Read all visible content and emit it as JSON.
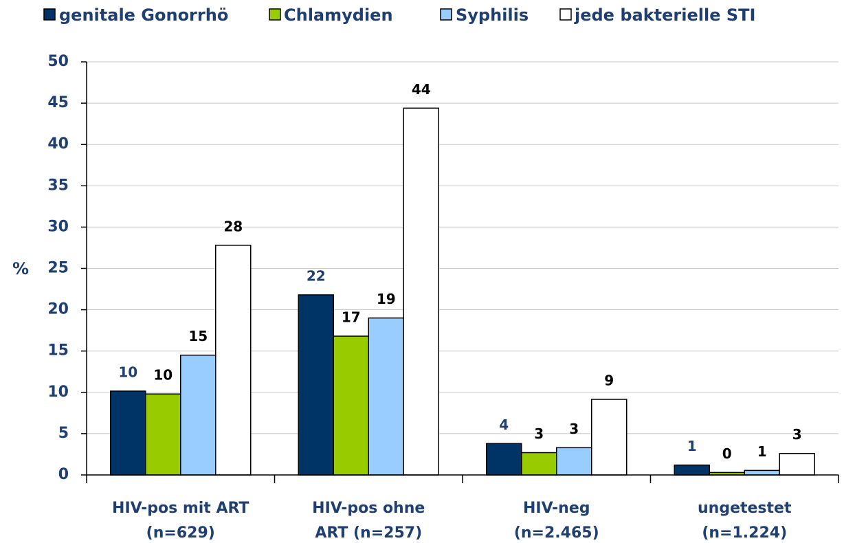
{
  "chart_data": {
    "type": "bar",
    "categories": [
      [
        "HIV-pos mit ART",
        "(n=629)"
      ],
      [
        "HIV-pos ohne",
        "ART (n=257)"
      ],
      [
        "HIV-neg",
        "(n=2.465)"
      ],
      [
        "ungetestet",
        "(n=1.224)"
      ]
    ],
    "y_label": "%",
    "ylim": [
      0,
      50
    ],
    "yticks": [
      0,
      5,
      10,
      15,
      20,
      25,
      30,
      35,
      40,
      45,
      50
    ],
    "grid": true,
    "legend": "top",
    "series": [
      {
        "name": "genitale Gonorrhö",
        "color": "#003366",
        "label_color": "#1f3f73",
        "values": [
          10.15,
          21.8,
          3.8,
          1.2
        ],
        "value_labels": [
          "10",
          "22",
          "4",
          "1"
        ]
      },
      {
        "name": "Chlamydien",
        "color": "#99cc00",
        "label_color": "#000000",
        "values": [
          9.8,
          16.8,
          2.7,
          0.3
        ],
        "value_labels": [
          "10",
          "17",
          "3",
          "0"
        ]
      },
      {
        "name": "Syphilis",
        "color": "#99ccff",
        "label_color": "#000000",
        "values": [
          14.5,
          19.0,
          3.3,
          0.55
        ],
        "value_labels": [
          "15",
          "19",
          "3",
          "1"
        ]
      },
      {
        "name": "jede bakterielle STI",
        "color": "#ffffff",
        "label_color": "#000000",
        "values": [
          27.8,
          44.4,
          9.15,
          2.6
        ],
        "value_labels": [
          "28",
          "44",
          "9",
          "3"
        ]
      }
    ]
  }
}
